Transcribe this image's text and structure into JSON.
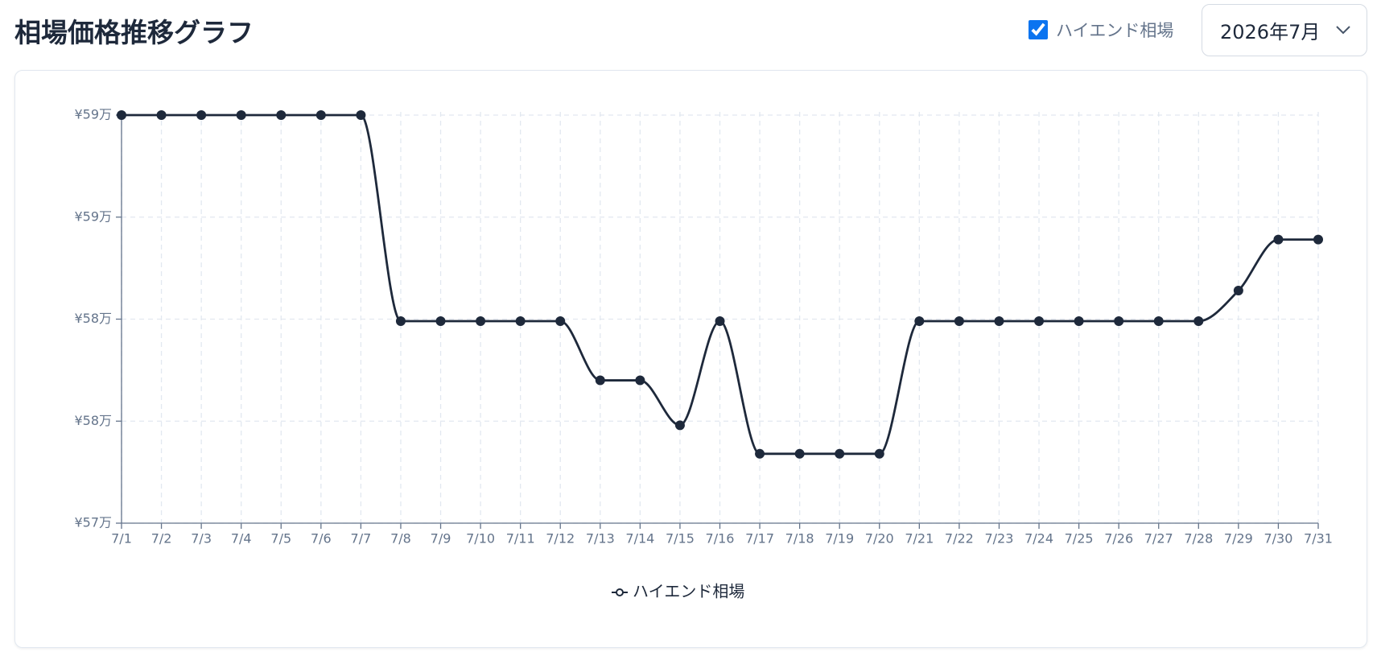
{
  "header": {
    "title": "相場価格推移グラフ"
  },
  "controls": {
    "toggle_label": "ハイエンド相場",
    "month": "2026年7月"
  },
  "chart_data": {
    "type": "line",
    "categories": [
      "7/1",
      "7/2",
      "7/3",
      "7/4",
      "7/5",
      "7/6",
      "7/7",
      "7/8",
      "7/9",
      "7/10",
      "7/11",
      "7/12",
      "7/13",
      "7/14",
      "7/15",
      "7/16",
      "7/17",
      "7/18",
      "7/19",
      "7/20",
      "7/21",
      "7/22",
      "7/23",
      "7/24",
      "7/25",
      "7/26",
      "7/27",
      "7/28",
      "7/29",
      "7/30",
      "7/31"
    ],
    "series": [
      {
        "name": "ハイエンド相場",
        "color": "#1e293b",
        "values": [
          590000,
          590000,
          590000,
          590000,
          590000,
          590000,
          590000,
          579900,
          579900,
          579900,
          579900,
          579900,
          577000,
          577000,
          574800,
          579900,
          573400,
          573400,
          573400,
          573400,
          579900,
          579900,
          579900,
          579900,
          579900,
          579900,
          579900,
          579900,
          581400,
          583900,
          583900
        ]
      }
    ],
    "ylim": [
      570000,
      590000
    ],
    "yticks": [
      {
        "value": 570000,
        "label": "¥57万"
      },
      {
        "value": 575000,
        "label": "¥58万"
      },
      {
        "value": 580000,
        "label": "¥58万"
      },
      {
        "value": 585000,
        "label": "¥59万"
      },
      {
        "value": 590000,
        "label": "¥59万"
      }
    ],
    "grid": true,
    "legend": "bottom"
  }
}
